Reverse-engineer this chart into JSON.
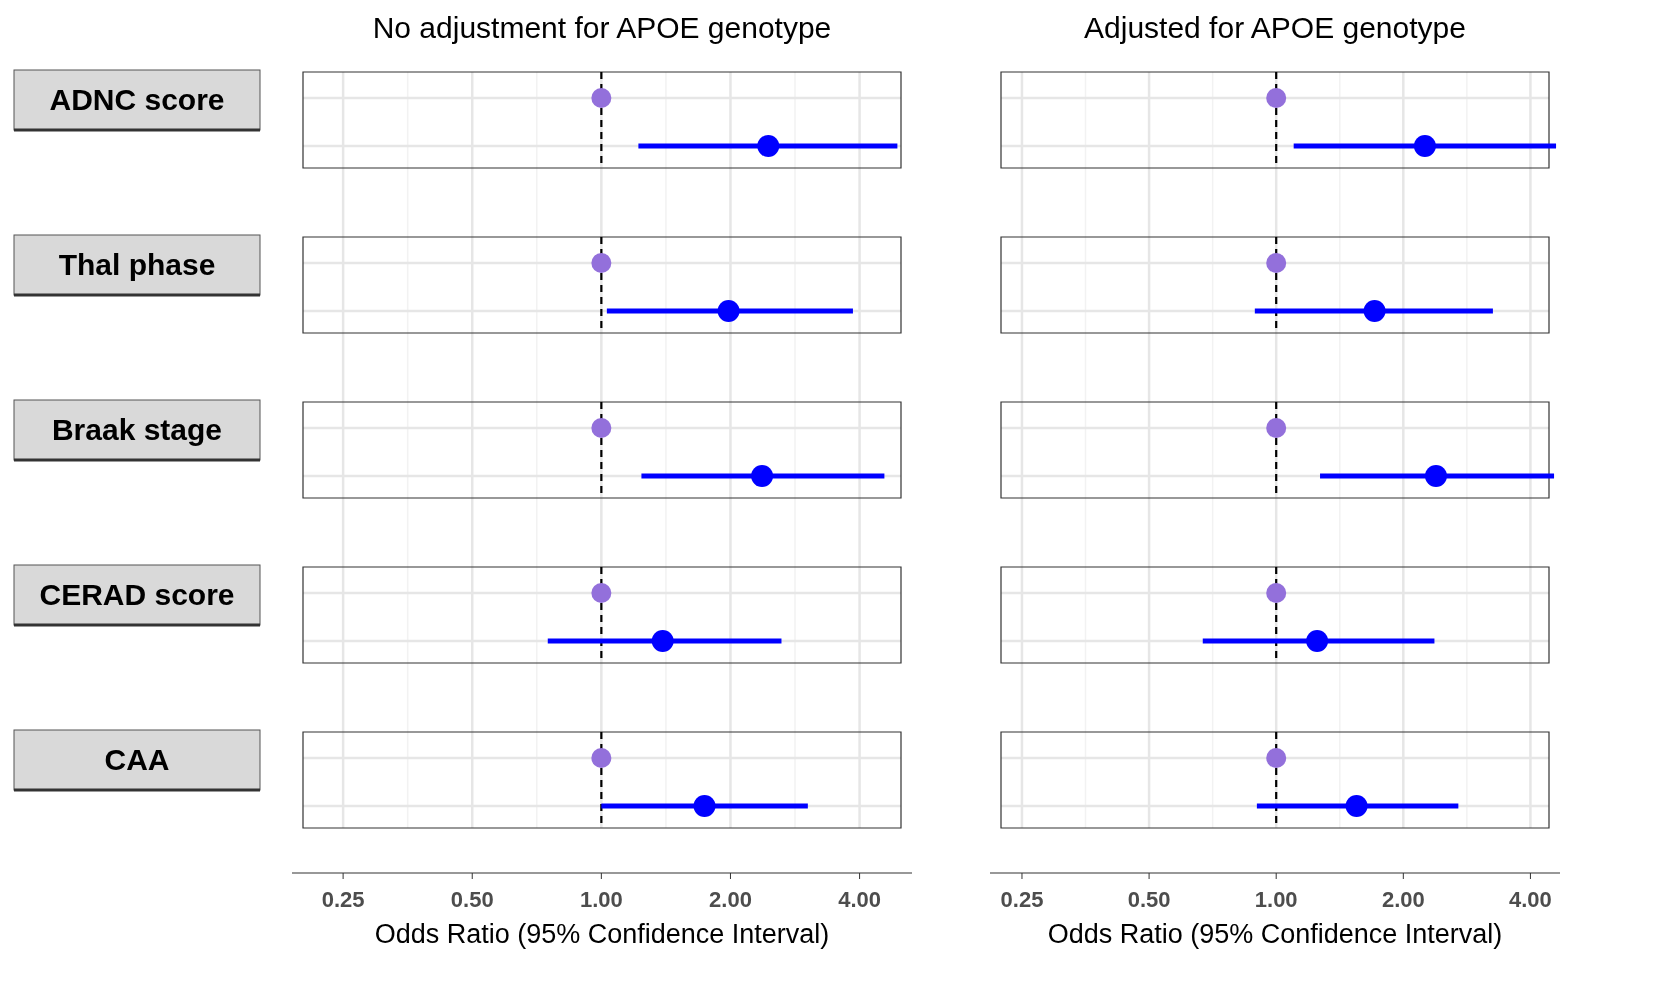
{
  "chart_data": [
    {
      "type": "scatter",
      "orientation": "horizontal",
      "title": "No adjustment for APOE genotype",
      "xlabel": "Odds Ratio (95% Confidence Interval)",
      "categories": [
        "ADNC score",
        null,
        "Thal phase",
        null,
        "Braak stage",
        null,
        "CERAD score",
        null,
        "CAA",
        null
      ],
      "series": [
        {
          "color": "#9370db",
          "values": [
            1,
            null,
            1,
            null,
            1,
            null,
            1,
            null,
            1,
            null
          ]
        },
        {
          "color": "#0000ff",
          "values": [
            null,
            2.45,
            null,
            1.98,
            null,
            2.37,
            null,
            1.39,
            null,
            1.74
          ],
          "errors": [
            null,
            [
              1.22,
              4.9
            ],
            null,
            [
              1.03,
              3.86
            ],
            null,
            [
              1.24,
              4.57
            ],
            null,
            [
              0.75,
              2.63
            ],
            null,
            [
              1.0,
              3.03
            ]
          ]
        }
      ],
      "xlim": [
        0.19,
        5.3
      ],
      "xticks": [
        0.25,
        {
          "value": 0.5,
          "label": "0.50"
        },
        {
          "value": 1,
          "label": "1.00"
        },
        {
          "value": 2,
          "label": "2.00"
        },
        {
          "value": 4,
          "label": "4.00"
        }
      ],
      "log": "x",
      "grid": true,
      "marker": "circle",
      "ref_lines": [
        {
          "axis": "x",
          "value": 1,
          "color": "#000000",
          "line_style": "dashed"
        }
      ]
    },
    {
      "type": "scatter",
      "orientation": "horizontal",
      "title": "Adjusted for APOE genotype",
      "xlabel": "Odds Ratio (95% Confidence Interval)",
      "categories": [
        null,
        null,
        null,
        null,
        null,
        null,
        null,
        null,
        null,
        null
      ],
      "series": [
        {
          "color": "#9370db",
          "values": [
            1,
            null,
            1,
            null,
            1,
            null,
            1,
            null,
            1,
            null
          ]
        },
        {
          "color": "#0000ff",
          "values": [
            null,
            2.25,
            null,
            1.71,
            null,
            2.39,
            null,
            1.25,
            null,
            1.55
          ],
          "errors": [
            null,
            [
              1.1,
              4.6
            ],
            null,
            [
              0.89,
              3.26
            ],
            null,
            [
              1.27,
              4.55
            ],
            null,
            [
              0.67,
              2.37
            ],
            null,
            [
              0.9,
              2.7
            ]
          ]
        }
      ],
      "xlim": [
        0.21,
        4.7
      ],
      "xticks": [
        0.25,
        {
          "value": 0.5,
          "label": "0.50"
        },
        {
          "value": 1,
          "label": "1.00"
        },
        {
          "value": 2,
          "label": "2.00"
        },
        {
          "value": 4,
          "label": "4.00"
        }
      ],
      "log": "x",
      "grid": true,
      "marker": "circle",
      "tick_labels": "x",
      "ref_lines": [
        {
          "axis": "x",
          "value": 1,
          "color": "#000000",
          "line_style": "dashed"
        }
      ]
    }
  ]
}
